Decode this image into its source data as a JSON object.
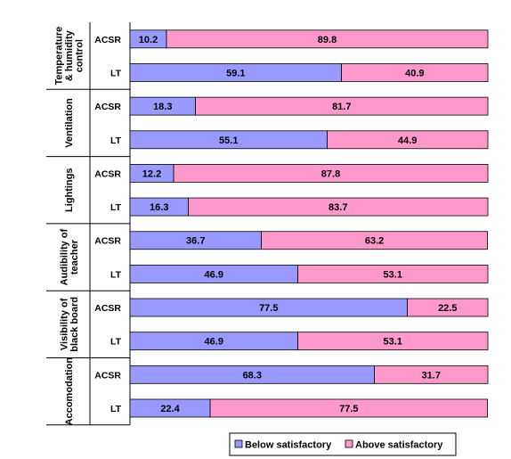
{
  "chart_data": {
    "type": "bar",
    "orientation": "horizontal",
    "stacked": "100%",
    "xlim": [
      0,
      100
    ],
    "groups": [
      {
        "label": "Temperature & humidity control",
        "label_lines": [
          "Temperature",
          "& humidity",
          "control"
        ],
        "bars": [
          {
            "category": "ACSR",
            "below": 10.2,
            "above": 89.8
          },
          {
            "category": "LT",
            "below": 59.1,
            "above": 40.9
          }
        ]
      },
      {
        "label": "Ventilation",
        "label_lines": [
          "Ventilation"
        ],
        "bars": [
          {
            "category": "ACSR",
            "below": 18.3,
            "above": 81.7
          },
          {
            "category": "LT",
            "below": 55.1,
            "above": 44.9
          }
        ]
      },
      {
        "label": "Lightings",
        "label_lines": [
          "Lightings"
        ],
        "bars": [
          {
            "category": "ACSR",
            "below": 12.2,
            "above": 87.8
          },
          {
            "category": "LT",
            "below": 16.3,
            "above": 83.7
          }
        ]
      },
      {
        "label": "Audibility of teacher",
        "label_lines": [
          "Audibility of",
          "teacher"
        ],
        "bars": [
          {
            "category": "ACSR",
            "below": 36.7,
            "above": 63.2
          },
          {
            "category": "LT",
            "below": 46.9,
            "above": 53.1
          }
        ]
      },
      {
        "label": "Visibility of black board",
        "label_lines": [
          "Visibility of",
          "black board"
        ],
        "bars": [
          {
            "category": "ACSR",
            "below": 77.5,
            "above": 22.5
          },
          {
            "category": "LT",
            "below": 46.9,
            "above": 53.1
          }
        ]
      },
      {
        "label": "Accomodation",
        "label_lines": [
          "Accomodation"
        ],
        "bars": [
          {
            "category": "ACSR",
            "below": 68.3,
            "above": 31.7
          },
          {
            "category": "LT",
            "below": 22.4,
            "above": 77.5
          }
        ]
      }
    ],
    "series": [
      {
        "name": "Below satisfactory",
        "key": "below",
        "color": "#9999ff"
      },
      {
        "name": "Above satisfactory",
        "key": "above",
        "color": "#ff99cc"
      }
    ],
    "legend_position": "bottom-right",
    "grid": false
  }
}
